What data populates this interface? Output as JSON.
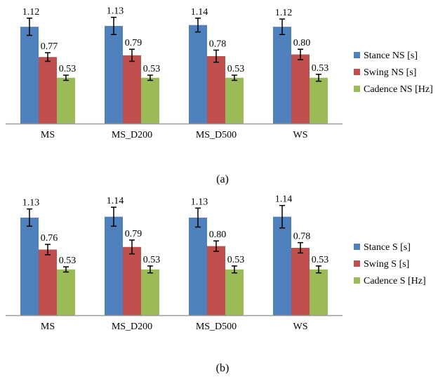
{
  "colors": {
    "stance": "#4F81BD",
    "swing": "#C0504D",
    "cadence": "#9BBB59",
    "axis": "#9a9a9a"
  },
  "chart_data": [
    {
      "type": "bar",
      "caption": "(a)",
      "categories": [
        "MS",
        "MS_D200",
        "MS_D500",
        "WS"
      ],
      "series": [
        {
          "name": "Stance NS [s]",
          "values": [
            1.12,
            1.13,
            1.14,
            1.12
          ],
          "labels": [
            "1.12",
            "1.13",
            "1.14",
            "1.12"
          ],
          "errors": [
            0.1,
            0.1,
            0.08,
            0.09
          ]
        },
        {
          "name": "Swing NS  [s]",
          "values": [
            0.77,
            0.79,
            0.78,
            0.8
          ],
          "labels": [
            "0.77",
            "0.79",
            "0.78",
            "0.80"
          ],
          "errors": [
            0.05,
            0.07,
            0.07,
            0.06
          ]
        },
        {
          "name": "Cadence NS [Hz]",
          "values": [
            0.53,
            0.53,
            0.53,
            0.53
          ],
          "labels": [
            "0.53",
            "0.53",
            "0.53",
            "0.53"
          ],
          "errors": [
            0.03,
            0.03,
            0.03,
            0.04
          ]
        }
      ],
      "ylim": [
        0,
        1.3
      ],
      "grid": false,
      "legend": "right"
    },
    {
      "type": "bar",
      "caption": "(b)",
      "categories": [
        "MS",
        "MS_D200",
        "MS_D500",
        "WS"
      ],
      "series": [
        {
          "name": "Stance S [s]",
          "values": [
            1.13,
            1.14,
            1.13,
            1.14
          ],
          "labels": [
            "1.13",
            "1.14",
            "1.13",
            "1.14"
          ],
          "errors": [
            0.1,
            0.11,
            0.11,
            0.13
          ]
        },
        {
          "name": "Swing S  [s]",
          "values": [
            0.76,
            0.79,
            0.8,
            0.78
          ],
          "labels": [
            "0.76",
            "0.79",
            "0.80",
            "0.78"
          ],
          "errors": [
            0.06,
            0.08,
            0.06,
            0.06
          ]
        },
        {
          "name": "Cadence S [Hz]",
          "values": [
            0.53,
            0.53,
            0.53,
            0.53
          ],
          "labels": [
            "0.53",
            "0.53",
            "0.53",
            "0.53"
          ],
          "errors": [
            0.03,
            0.04,
            0.04,
            0.04
          ]
        }
      ],
      "ylim": [
        0,
        1.3
      ],
      "grid": false,
      "legend": "right"
    }
  ]
}
